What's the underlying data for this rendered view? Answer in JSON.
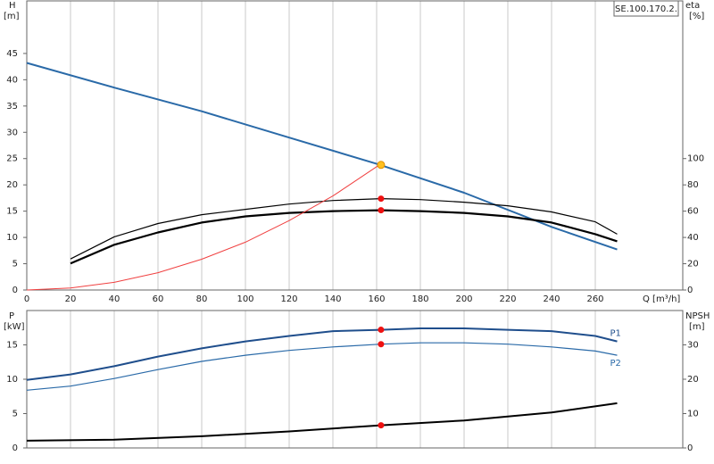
{
  "chart_data": [
    {
      "type": "line",
      "annotation": "SE.100.170.2.",
      "y_label": "H",
      "y_unit": "[m]",
      "y2_label": "eta",
      "y2_unit": "[%]",
      "x_label": "Q [m³/h]",
      "xlim": [
        0,
        300
      ],
      "xticks": [
        0,
        20,
        40,
        60,
        80,
        100,
        120,
        140,
        160,
        180,
        200,
        220,
        240,
        260
      ],
      "ylim": [
        0,
        55
      ],
      "yticks": [
        0,
        5,
        10,
        15,
        20,
        25,
        30,
        35,
        40,
        45
      ],
      "y2lim": [
        0,
        220
      ],
      "y2ticks": [
        0,
        20,
        40,
        60,
        80,
        100
      ],
      "grid": true,
      "series": [
        {
          "color": "#2a6aa8",
          "width": 2,
          "x": [
            0,
            40,
            80,
            120,
            160,
            200,
            240,
            270
          ],
          "values": [
            43.2,
            38.5,
            34,
            29,
            24,
            18.5,
            12,
            7.7
          ]
        },
        {
          "color": "#000000",
          "width": 1.2,
          "axis": "y2",
          "x": [
            20,
            40,
            60,
            80,
            100,
            120,
            140,
            162,
            180,
            200,
            220,
            240,
            260,
            270
          ],
          "values": [
            23.6,
            40.5,
            50.6,
            57.3,
            61.4,
            65.4,
            68.1,
            69.5,
            68.8,
            66.8,
            64.1,
            59.4,
            51.9,
            42.5
          ]
        },
        {
          "color": "#000000",
          "width": 2.2,
          "axis": "y2",
          "x": [
            20,
            40,
            60,
            80,
            100,
            120,
            140,
            162,
            180,
            200,
            220,
            240,
            260,
            270
          ],
          "values": [
            20.2,
            34.4,
            43.8,
            51.3,
            56,
            58.7,
            60,
            60.7,
            60,
            58.7,
            56,
            51.3,
            42.5,
            37.1
          ]
        },
        {
          "color": "#f04040",
          "width": 1,
          "x": [
            0,
            20,
            40,
            60,
            80,
            100,
            120,
            140,
            162
          ],
          "values": [
            0,
            0.37,
            1.46,
            3.3,
            5.85,
            9.1,
            13.2,
            17.9,
            24
          ]
        }
      ],
      "markers": [
        {
          "color": "#ffc020",
          "x": 162,
          "value": 23.8
        },
        {
          "color": "#ee1111",
          "axis": "y2",
          "x": 162,
          "value": 69.5
        },
        {
          "color": "#ee1111",
          "axis": "y2",
          "x": 162,
          "value": 60.7
        }
      ]
    },
    {
      "type": "line",
      "y_label": "P",
      "y_unit": "[kW]",
      "y2_label": "NPSH",
      "y2_unit": "[m]",
      "xlim": [
        0,
        300
      ],
      "xticks": [
        0,
        20,
        40,
        60,
        80,
        100,
        120,
        140,
        160,
        180,
        200,
        220,
        240,
        260
      ],
      "ylim": [
        0,
        20
      ],
      "yticks": [
        0,
        5,
        10,
        15
      ],
      "y2lim": [
        0,
        40
      ],
      "y2ticks": [
        0,
        10,
        20,
        30
      ],
      "grid": true,
      "series": [
        {
          "name": "P1",
          "color": "#1f4e8c",
          "width": 2,
          "x": [
            0,
            20,
            40,
            60,
            80,
            100,
            120,
            140,
            162,
            180,
            200,
            220,
            240,
            260,
            270
          ],
          "values": [
            9.9,
            10.7,
            11.9,
            13.3,
            14.5,
            15.5,
            16.3,
            17.0,
            17.2,
            17.4,
            17.4,
            17.2,
            17.0,
            16.3,
            15.5
          ]
        },
        {
          "name": "P2",
          "color": "#2a6aa8",
          "width": 1.2,
          "x": [
            0,
            20,
            40,
            60,
            80,
            100,
            120,
            140,
            162,
            180,
            200,
            220,
            240,
            260,
            270
          ],
          "values": [
            8.4,
            9.0,
            10.1,
            11.4,
            12.6,
            13.5,
            14.2,
            14.7,
            15.1,
            15.3,
            15.3,
            15.1,
            14.7,
            14.1,
            13.5
          ]
        },
        {
          "color": "#000000",
          "width": 2,
          "axis": "y2",
          "x": [
            0,
            40,
            80,
            120,
            162,
            200,
            240,
            270
          ],
          "values": [
            2.1,
            2.4,
            3.4,
            4.8,
            6.6,
            8.0,
            10.3,
            13.0
          ]
        }
      ],
      "markers": [
        {
          "color": "#ee1111",
          "x": 162,
          "value": 17.2
        },
        {
          "color": "#ee1111",
          "x": 162,
          "value": 15.1
        },
        {
          "color": "#ee1111",
          "axis": "y2",
          "x": 162,
          "value": 6.6
        }
      ]
    }
  ]
}
